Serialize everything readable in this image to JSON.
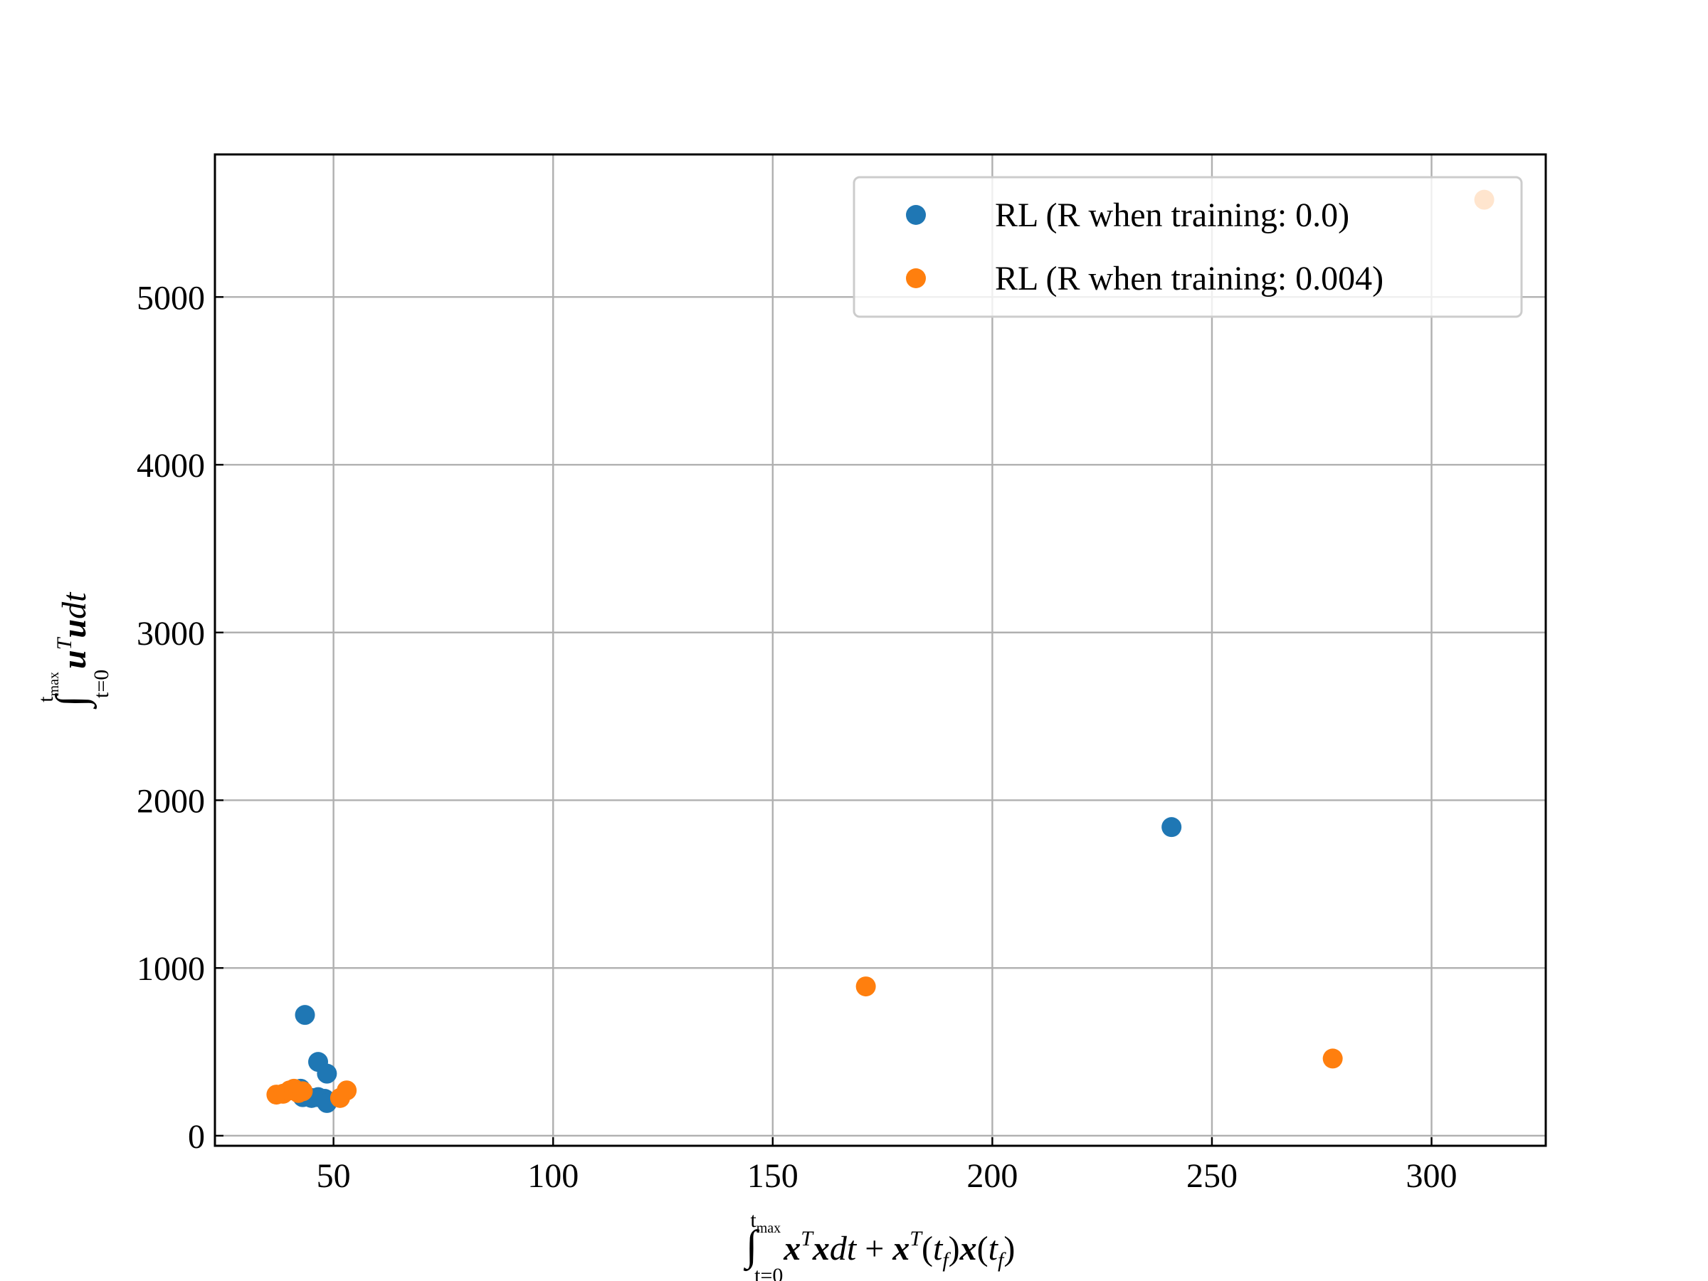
{
  "chart_data": {
    "type": "scatter",
    "title": "",
    "xlabel": "∫_{t=0}^{t_max} xᵀx dt + xᵀ(t_f) x(t_f)",
    "ylabel": "∫_{t=0}^{t_max} uᵀu dt",
    "xlim": [
      23,
      326
    ],
    "ylim": [
      -60,
      5850
    ],
    "xticks": [
      50,
      100,
      150,
      200,
      250,
      300
    ],
    "yticks": [
      0,
      1000,
      2000,
      3000,
      4000,
      5000
    ],
    "grid": true,
    "legend_position": "top-right",
    "series": [
      {
        "name": "RL (R when training: 0.0)",
        "color": "#1f77b4",
        "points": [
          {
            "x": 43.5,
            "y": 720
          },
          {
            "x": 46.5,
            "y": 440
          },
          {
            "x": 48.5,
            "y": 370
          },
          {
            "x": 42.5,
            "y": 280
          },
          {
            "x": 43.0,
            "y": 230
          },
          {
            "x": 45.0,
            "y": 225
          },
          {
            "x": 46.5,
            "y": 230
          },
          {
            "x": 48.0,
            "y": 220
          },
          {
            "x": 48.5,
            "y": 195
          },
          {
            "x": 240.8,
            "y": 1840
          }
        ]
      },
      {
        "name": "RL (R when training: 0.004)",
        "color": "#ff7f0e",
        "points": [
          {
            "x": 37.0,
            "y": 245
          },
          {
            "x": 38.5,
            "y": 250
          },
          {
            "x": 40.0,
            "y": 270
          },
          {
            "x": 41.0,
            "y": 280
          },
          {
            "x": 42.0,
            "y": 255
          },
          {
            "x": 43.0,
            "y": 265
          },
          {
            "x": 51.5,
            "y": 225
          },
          {
            "x": 53.0,
            "y": 270
          },
          {
            "x": 171.2,
            "y": 890
          },
          {
            "x": 277.5,
            "y": 460
          },
          {
            "x": 312.0,
            "y": 5580
          }
        ]
      }
    ]
  }
}
